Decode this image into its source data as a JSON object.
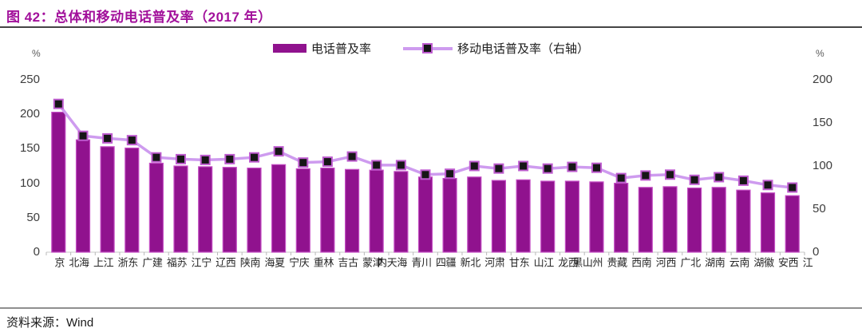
{
  "title": "图 42：总体和移动电话普及率（2017 年）",
  "source": "资料来源：Wind",
  "legend": {
    "bar_series_label": "电话普及率",
    "line_series_label": "移动电话普及率（右轴）"
  },
  "colors": {
    "title": "#A2109B",
    "bar_fill": "#90128E",
    "bar_border": "#C44EC4",
    "line": "#CE9BEF",
    "marker_fill": "#161616",
    "marker_border": "#BE5CCF",
    "axis_text": "#3d3d3d",
    "axis_line": "#c9c9c9",
    "tick": "#b9b9b9"
  },
  "chart_data": {
    "type": "bar",
    "title": "总体和移动电话普及率（2017 年）",
    "categories": [
      "北京",
      "上海",
      "浙江",
      "广东",
      "福建",
      "江苏",
      "辽宁",
      "陕西",
      "海南",
      "宁夏",
      "重庆",
      "吉林",
      "内蒙古",
      "天津",
      "青海",
      "四川",
      "新疆",
      "河北",
      "甘肃",
      "山东",
      "黑龙江",
      "山西",
      "贵州",
      "西藏",
      "河南",
      "广西",
      "湖北",
      "云南",
      "湖南",
      "安徽",
      "江西"
    ],
    "series": [
      {
        "name": "电话普及率",
        "type": "bar",
        "axis": "left",
        "values": [
          203,
          163,
          153,
          151,
          129,
          125,
          124,
          123,
          122,
          127,
          121,
          122,
          120,
          119,
          117,
          109,
          107,
          109,
          104,
          105,
          103,
          103,
          102,
          100,
          94,
          95,
          93,
          94,
          90,
          86,
          82
        ]
      },
      {
        "name": "移动电话普及率（右轴）",
        "type": "line",
        "axis": "right",
        "values": [
          172,
          135,
          132,
          130,
          110,
          108,
          107,
          108,
          110,
          117,
          104,
          105,
          111,
          101,
          101,
          90,
          91,
          100,
          97,
          100,
          97,
          99,
          98,
          86,
          89,
          90,
          84,
          87,
          83,
          78,
          75
        ]
      }
    ],
    "left_axis": {
      "unit": "%",
      "ticks": [
        250,
        200,
        150,
        100,
        50,
        0
      ],
      "range": [
        0,
        250
      ]
    },
    "right_axis": {
      "unit": "%",
      "ticks": [
        200,
        150,
        100,
        50,
        0
      ],
      "range": [
        0,
        200
      ]
    },
    "legend_position": "top",
    "grid": false
  }
}
